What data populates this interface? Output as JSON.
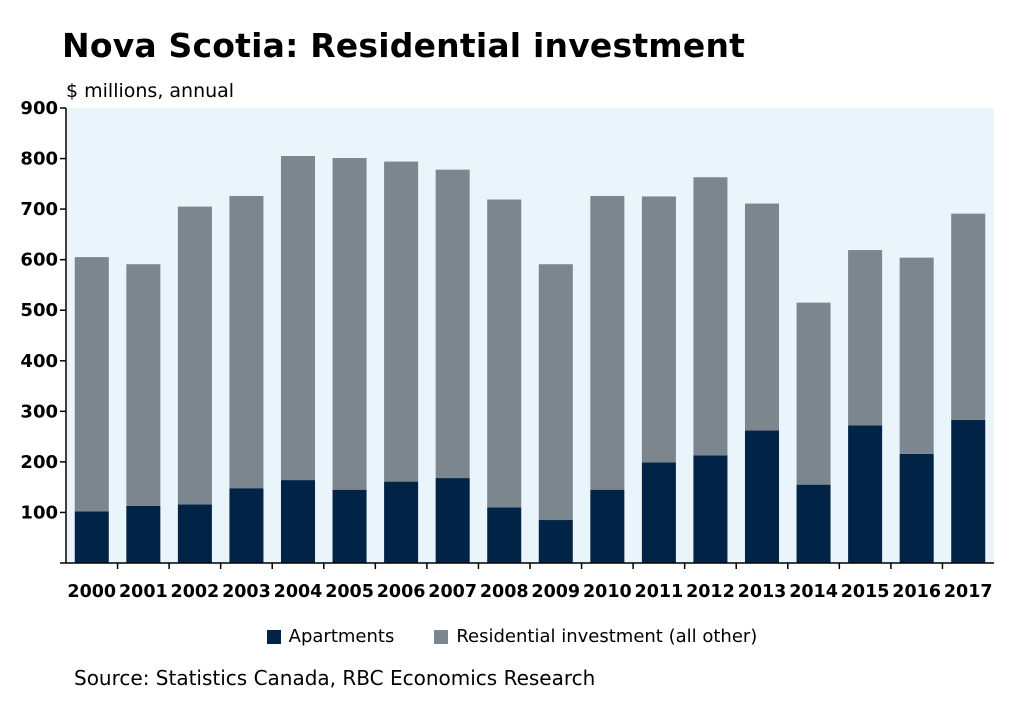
{
  "chart_data": {
    "type": "bar",
    "stacked": true,
    "title": "Nova Scotia: Residential investment",
    "subtitle": "$ millions, annual",
    "xlabel": "",
    "ylabel": "",
    "ylim": [
      0,
      900
    ],
    "yticks": [
      "",
      "100",
      "200",
      "300",
      "400",
      "500",
      "600",
      "700",
      "800",
      "900"
    ],
    "grid": false,
    "legend_position": "bottom",
    "categories": [
      "2000",
      "2001",
      "2002",
      "2003",
      "2004",
      "2005",
      "2006",
      "2007",
      "2008",
      "2009",
      "2010",
      "2011",
      "2012",
      "2013",
      "2014",
      "2015",
      "2016",
      "2017"
    ],
    "series": [
      {
        "name": "Apartments",
        "color": "#002346",
        "values": [
          102,
          113,
          116,
          148,
          164,
          145,
          161,
          168,
          110,
          85,
          145,
          199,
          213,
          262,
          155,
          272,
          216,
          283
        ]
      },
      {
        "name": "Residential investment (all other)",
        "color": "#7c868e",
        "values": [
          503,
          478,
          589,
          578,
          641,
          656,
          633,
          610,
          609,
          506,
          581,
          526,
          550,
          449,
          360,
          347,
          388,
          408
        ]
      }
    ],
    "source": "Source: Statistics Canada, RBC Economics Research"
  },
  "colors": {
    "plot_background": "#eaf4fb",
    "axis": "#000000"
  }
}
